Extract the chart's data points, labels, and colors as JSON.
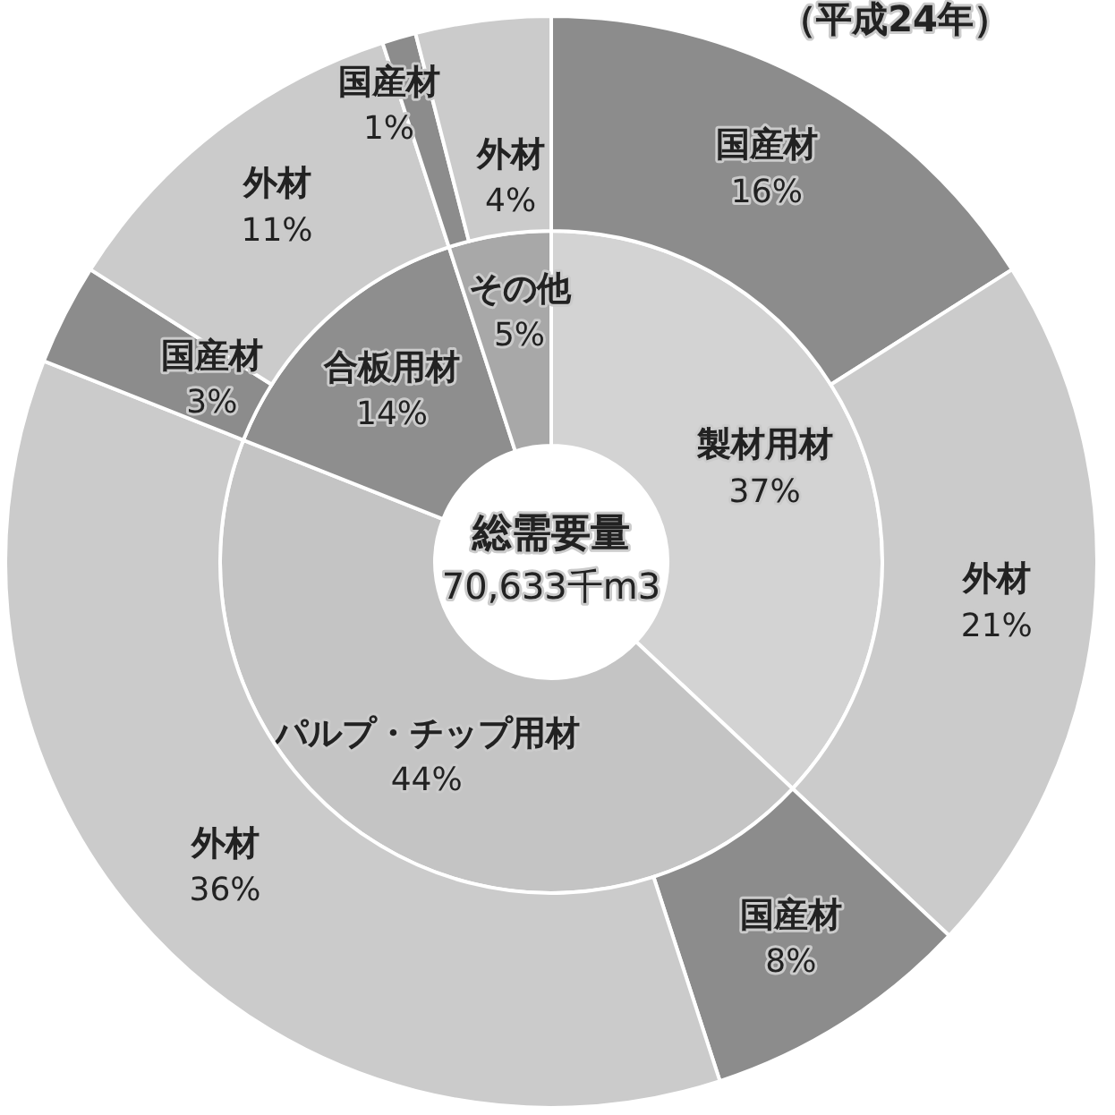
{
  "chart_data": [
    {
      "type": "donut",
      "annotations": [
        "総需要量",
        "70,633千m3"
      ],
      "categories": [
        "製材用材",
        "パルプ・チップ用材",
        "合板用材",
        "その他"
      ],
      "values": [
        37,
        44,
        14,
        5
      ],
      "value_labels": [
        "37%",
        "44%",
        "14%",
        "5%"
      ],
      "colors": [
        "#d3d3d3",
        "#c4c4c4",
        "#8e8e8e",
        "#a8a8a8"
      ]
    },
    {
      "type": "donut",
      "title": "（平成24年）",
      "categories": [
        "国産材",
        "外材",
        "国産材",
        "外材",
        "国産材",
        "外材",
        "国産材",
        "外材"
      ],
      "values": [
        16,
        21,
        8,
        36,
        3,
        11,
        1,
        4
      ],
      "value_labels": [
        "16%",
        "21%",
        "8%",
        "36%",
        "3%",
        "11%",
        "1%",
        "4%"
      ],
      "colors": [
        "#8c8c8c",
        "#cbcbcb",
        "#8c8c8c",
        "#cbcbcb",
        "#8c8c8c",
        "#cbcbcb",
        "#8c8c8c",
        "#cbcbcb"
      ]
    }
  ]
}
